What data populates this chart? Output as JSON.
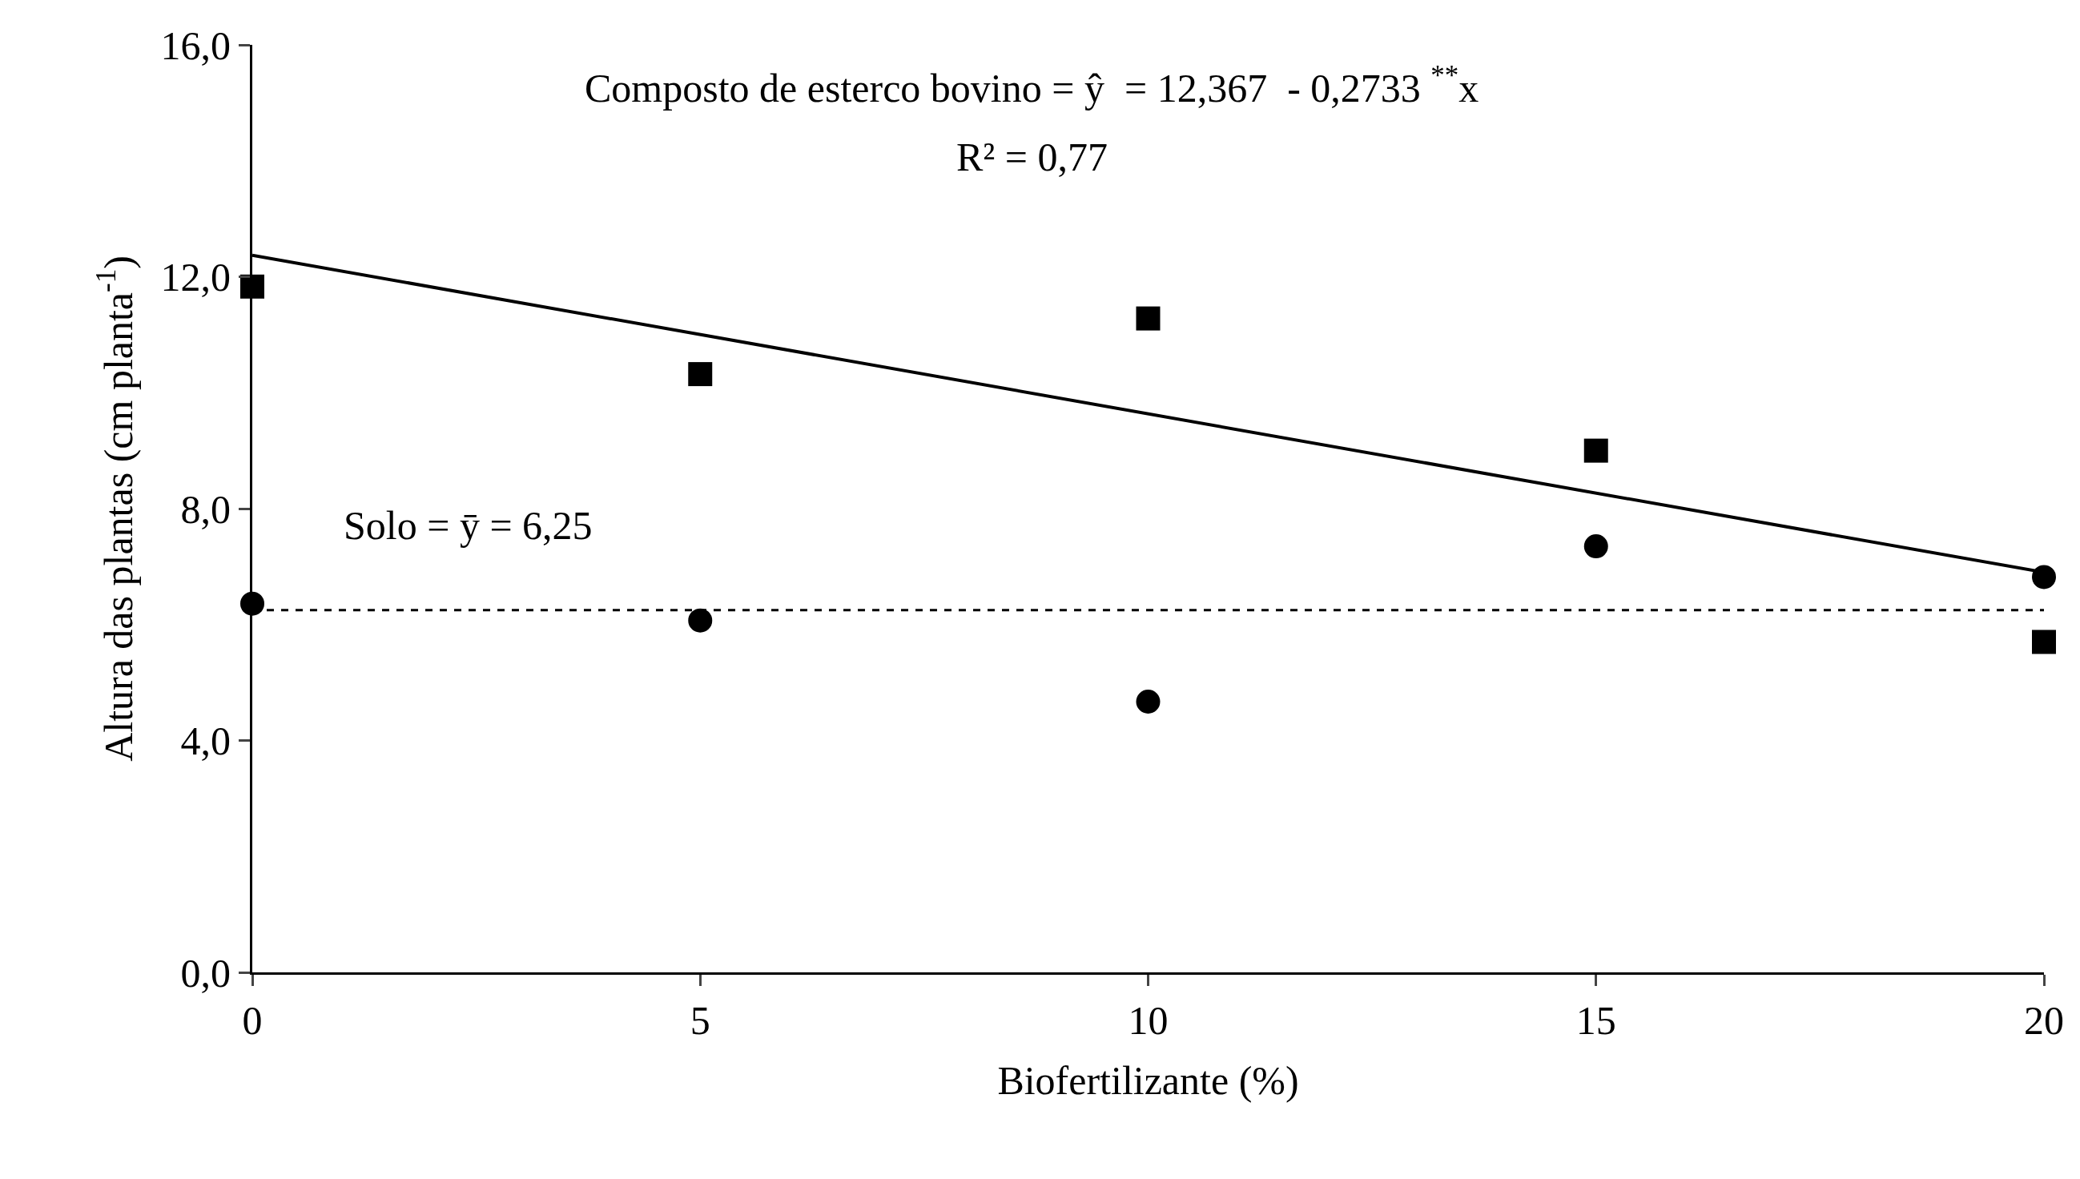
{
  "chart_data": {
    "type": "scatter",
    "xlabel": "Biofertilizante (%)",
    "ylabel": "Altura das plantas (cm planta$^{-1}$)",
    "x": [
      0,
      5,
      10,
      15,
      20
    ],
    "series": [
      {
        "color": "#000000",
        "marker": "square",
        "values": [
          11.83,
          10.32,
          11.28,
          9.0,
          5.7
        ]
      },
      {
        "color": "#000000",
        "marker": "circle",
        "values": [
          6.36,
          6.07,
          4.67,
          7.35,
          6.82
        ]
      },
      {
        "type": "line",
        "color": "#000000",
        "marker": "none",
        "line_style": "solid",
        "x": [
          0,
          20
        ],
        "values": [
          12.37,
          6.9
        ]
      }
    ],
    "ref_lines": [
      {
        "axis": "y",
        "value": 6.25,
        "label": "Solo = ȳ = 6,25",
        "line_style": "dashed",
        "color": "#000000"
      }
    ],
    "annotations": [
      "Composto de esterco bovino = ŷ  = 12,367  - 0,2733 $^{**}$x",
      "R² = 0,77"
    ],
    "xlim": [
      0,
      20
    ],
    "xticks": [
      0,
      5,
      10,
      15,
      20
    ],
    "ylim": [
      0,
      16
    ],
    "yticks": [
      {
        "value": 0,
        "label": "0,0"
      },
      {
        "value": 4,
        "label": "4,0"
      },
      {
        "value": 8,
        "label": "8,0"
      },
      {
        "value": 12,
        "label": "12,0"
      },
      {
        "value": 16,
        "label": "16,0"
      }
    ],
    "grid": false
  }
}
